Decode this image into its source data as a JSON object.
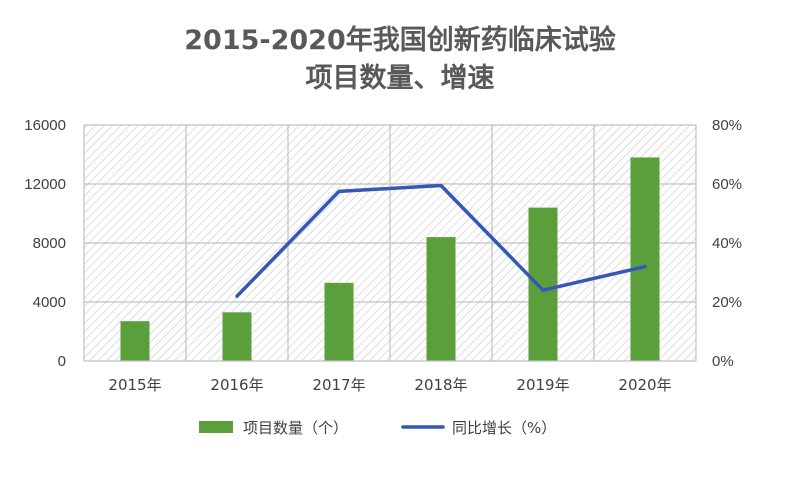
{
  "chart_data": {
    "type": "bar",
    "title_line1": "2015-2020年我国创新药临床试验",
    "title_line2": "项目数量、增速",
    "categories": [
      "2015年",
      "2016年",
      "2017年",
      "2018年",
      "2019年",
      "2020年"
    ],
    "series": [
      {
        "name": "项目数量（个）",
        "type": "bar",
        "axis": "left",
        "values": [
          2700,
          3300,
          5300,
          8400,
          10400,
          13800
        ],
        "color": "#5b9f3c"
      },
      {
        "name": "同比增长（%）",
        "type": "line",
        "axis": "right",
        "values": [
          null,
          22,
          57.5,
          59.5,
          24,
          32
        ],
        "color": "#3557b7"
      }
    ],
    "y_left": {
      "min": 0,
      "max": 16000,
      "ticks": [
        0,
        4000,
        8000,
        12000,
        16000
      ],
      "tick_labels": [
        "0",
        "4000",
        "8000",
        "12000",
        "16000"
      ]
    },
    "y_right": {
      "min": 0,
      "max": 80,
      "ticks": [
        0,
        20,
        40,
        60,
        80
      ],
      "tick_labels": [
        "0%",
        "20%",
        "40%",
        "60%",
        "80%"
      ]
    },
    "grid": true,
    "legend_position": "bottom",
    "plot_background": "hatched"
  }
}
